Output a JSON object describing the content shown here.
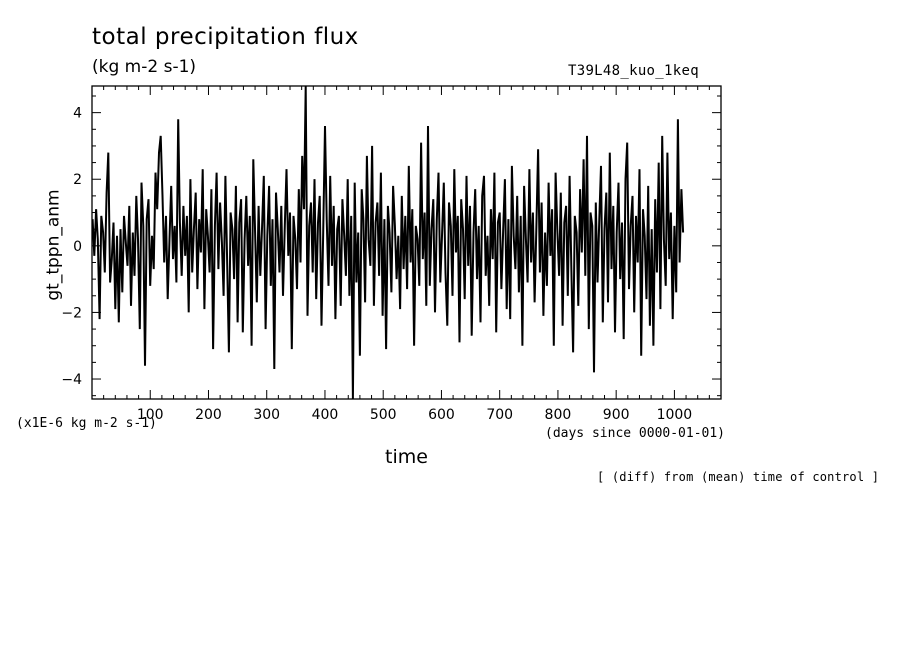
{
  "chart_data": {
    "type": "line",
    "title": "total precipitation flux",
    "subtitle": "(kg m-2 s-1)",
    "run_id": "T39L48_kuo_1keq",
    "ylabel": "gt_tppn_anm",
    "y_unit": "(x1E-6 kg m-2 s-1)",
    "xlabel": "time",
    "x_unit": "(days since 0000-01-01)",
    "annotation": "[ (diff) from (mean) time of control ]",
    "xlim": [
      0,
      1080
    ],
    "ylim": [
      -4.6,
      4.8
    ],
    "x_ticks": [
      100,
      200,
      300,
      400,
      500,
      600,
      700,
      800,
      900,
      1000
    ],
    "y_ticks": [
      -4,
      -2,
      0,
      2,
      4
    ],
    "line_color": "#000000",
    "series": [
      {
        "x_start": 1,
        "x_step": 3,
        "values": [
          0.8,
          -0.3,
          1.1,
          0.2,
          -2.2,
          0.9,
          0.4,
          -0.8,
          1.6,
          2.8,
          -1.1,
          -0.4,
          0.7,
          -1.9,
          0.3,
          -2.3,
          0.5,
          -1.4,
          0.9,
          0.1,
          -0.6,
          1.2,
          -1.8,
          0.4,
          -0.9,
          1.5,
          0.2,
          -2.5,
          1.9,
          0.6,
          -3.6,
          0.8,
          1.4,
          -1.2,
          0.3,
          -0.7,
          2.2,
          1.1,
          2.8,
          3.3,
          1.5,
          -0.5,
          0.9,
          -1.6,
          0.2,
          1.8,
          -0.4,
          0.6,
          -1.1,
          3.8,
          0.7,
          -0.9,
          1.2,
          -0.3,
          0.9,
          -2.0,
          2.0,
          -0.8,
          0.5,
          1.6,
          -1.3,
          0.8,
          -0.2,
          2.3,
          -1.9,
          1.1,
          0.3,
          -0.8,
          1.7,
          -3.1,
          0.6,
          2.2,
          -0.7,
          1.3,
          0.1,
          -1.5,
          2.1,
          -0.4,
          -3.2,
          1.0,
          0.5,
          -1.0,
          1.8,
          -2.3,
          0.7,
          1.4,
          -2.6,
          0.2,
          1.5,
          -0.6,
          0.9,
          -3.0,
          2.6,
          0.4,
          -1.7,
          1.2,
          -0.9,
          0.6,
          2.1,
          -2.5,
          0.3,
          1.8,
          -1.2,
          0.8,
          -3.7,
          1.6,
          0.5,
          -0.8,
          1.2,
          -1.5,
          0.6,
          2.3,
          -0.3,
          1.0,
          -3.1,
          0.9,
          0.2,
          -1.3,
          1.7,
          -0.5,
          2.7,
          1.1,
          4.8,
          -2.1,
          0.6,
          1.3,
          -0.8,
          2.0,
          -1.6,
          0.7,
          1.5,
          -2.4,
          0.4,
          3.6,
          0.8,
          -1.2,
          2.1,
          -0.6,
          1.2,
          -2.2,
          0.5,
          0.9,
          -1.8,
          1.4,
          0.3,
          -0.9,
          2.0,
          -1.5,
          0.9,
          -4.6,
          1.9,
          -1.1,
          0.4,
          -3.3,
          1.7,
          0.8,
          -1.7,
          2.7,
          0.2,
          -0.6,
          3.0,
          -1.8,
          0.7,
          1.3,
          -0.9,
          2.2,
          -2.1,
          0.8,
          -3.1,
          1.2,
          0.4,
          -1.4,
          1.8,
          0.6,
          -1.0,
          0.3,
          -1.9,
          1.5,
          -0.7,
          0.9,
          -1.3,
          2.4,
          -0.5,
          1.1,
          -3.0,
          0.6,
          0.2,
          -1.2,
          3.1,
          -0.4,
          1.0,
          -1.8,
          3.6,
          -1.2,
          0.5,
          1.4,
          -2.0,
          0.8,
          2.2,
          -1.1,
          0.3,
          1.9,
          -0.8,
          -2.4,
          1.3,
          0.6,
          -1.5,
          2.3,
          -0.2,
          0.9,
          -2.9,
          1.4,
          0.5,
          -1.6,
          2.1,
          -0.6,
          1.2,
          -2.7,
          0.4,
          1.7,
          -1.0,
          0.6,
          -2.3,
          1.5,
          2.1,
          -0.9,
          0.3,
          -1.8,
          1.1,
          -0.4,
          2.2,
          -2.6,
          0.7,
          1.0,
          -1.3,
          0.5,
          2.0,
          -1.9,
          0.8,
          -2.2,
          2.4,
          0.3,
          -0.7,
          1.5,
          -1.4,
          0.9,
          -3.0,
          1.8,
          0.2,
          -1.1,
          2.3,
          -0.5,
          1.0,
          -1.7,
          0.6,
          2.9,
          -0.8,
          1.3,
          -2.1,
          0.4,
          -1.2,
          1.9,
          -0.3,
          1.1,
          -3.0,
          2.2,
          0.5,
          -0.9,
          1.6,
          -2.4,
          0.7,
          1.2,
          -1.5,
          2.1,
          -0.6,
          -3.2,
          0.9,
          0.4,
          -1.8,
          1.7,
          -0.2,
          2.6,
          -0.9,
          3.3,
          -2.5,
          1.0,
          0.6,
          -3.8,
          1.3,
          -1.1,
          0.8,
          2.4,
          -2.3,
          0.5,
          1.6,
          -1.7,
          2.8,
          -0.7,
          1.2,
          -2.6,
          0.4,
          1.9,
          -1.0,
          0.7,
          -2.8,
          2.0,
          3.1,
          -1.3,
          0.6,
          1.5,
          -2.0,
          0.9,
          -0.5,
          2.3,
          -3.3,
          1.1,
          0.3,
          -1.6,
          1.8,
          -2.4,
          0.5,
          -3.0,
          1.4,
          -0.8,
          2.5,
          -1.9,
          3.3,
          0.2,
          -1.2,
          2.8,
          -0.4,
          1.0,
          -2.2,
          0.6,
          -1.4,
          3.8,
          -0.5,
          1.7,
          0.4
        ]
      }
    ]
  }
}
